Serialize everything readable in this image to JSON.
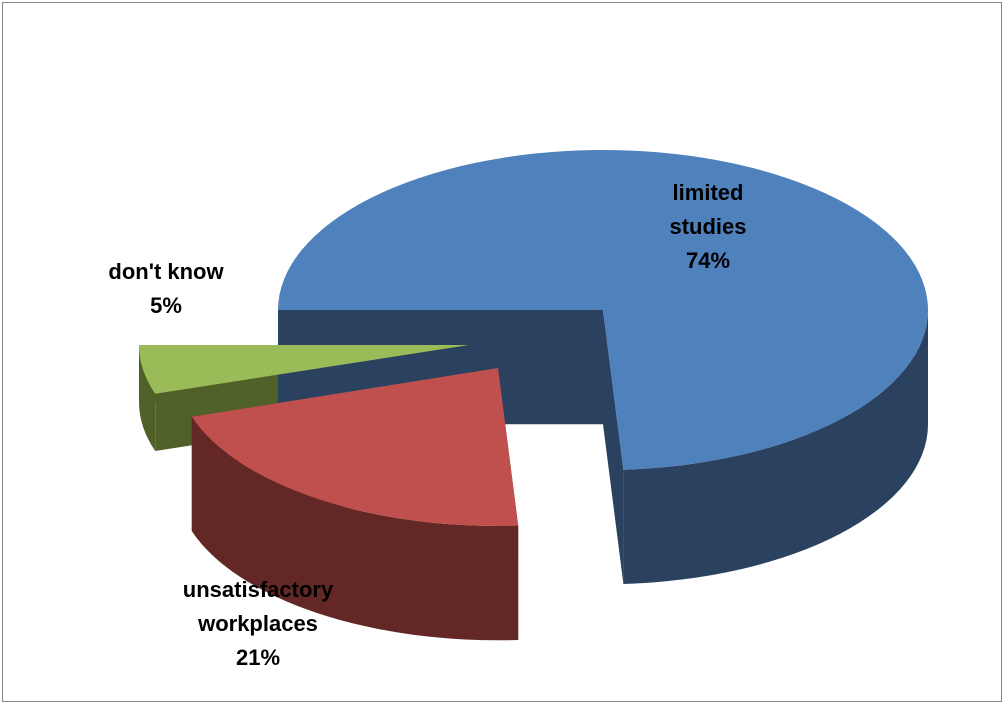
{
  "chart_data": {
    "type": "pie",
    "style": "3d-exploded",
    "title": "",
    "legend": "none",
    "slices": [
      {
        "name": "limited studies",
        "label_lines": [
          "limited",
          "studies"
        ],
        "value": 74,
        "value_label": "74%",
        "color": "#4F81BD",
        "side_color": "#2A4260"
      },
      {
        "name": "unsatisfactory workplaces",
        "label_lines": [
          "unsatisfactory",
          "workplaces"
        ],
        "value": 21,
        "value_label": "21%",
        "color": "#C0504D",
        "side_color": "#632826"
      },
      {
        "name": "don't know",
        "label_lines": [
          "don't know"
        ],
        "value": 5,
        "value_label": "5%",
        "color": "#9BBB59",
        "side_color": "#4F6128"
      }
    ]
  }
}
